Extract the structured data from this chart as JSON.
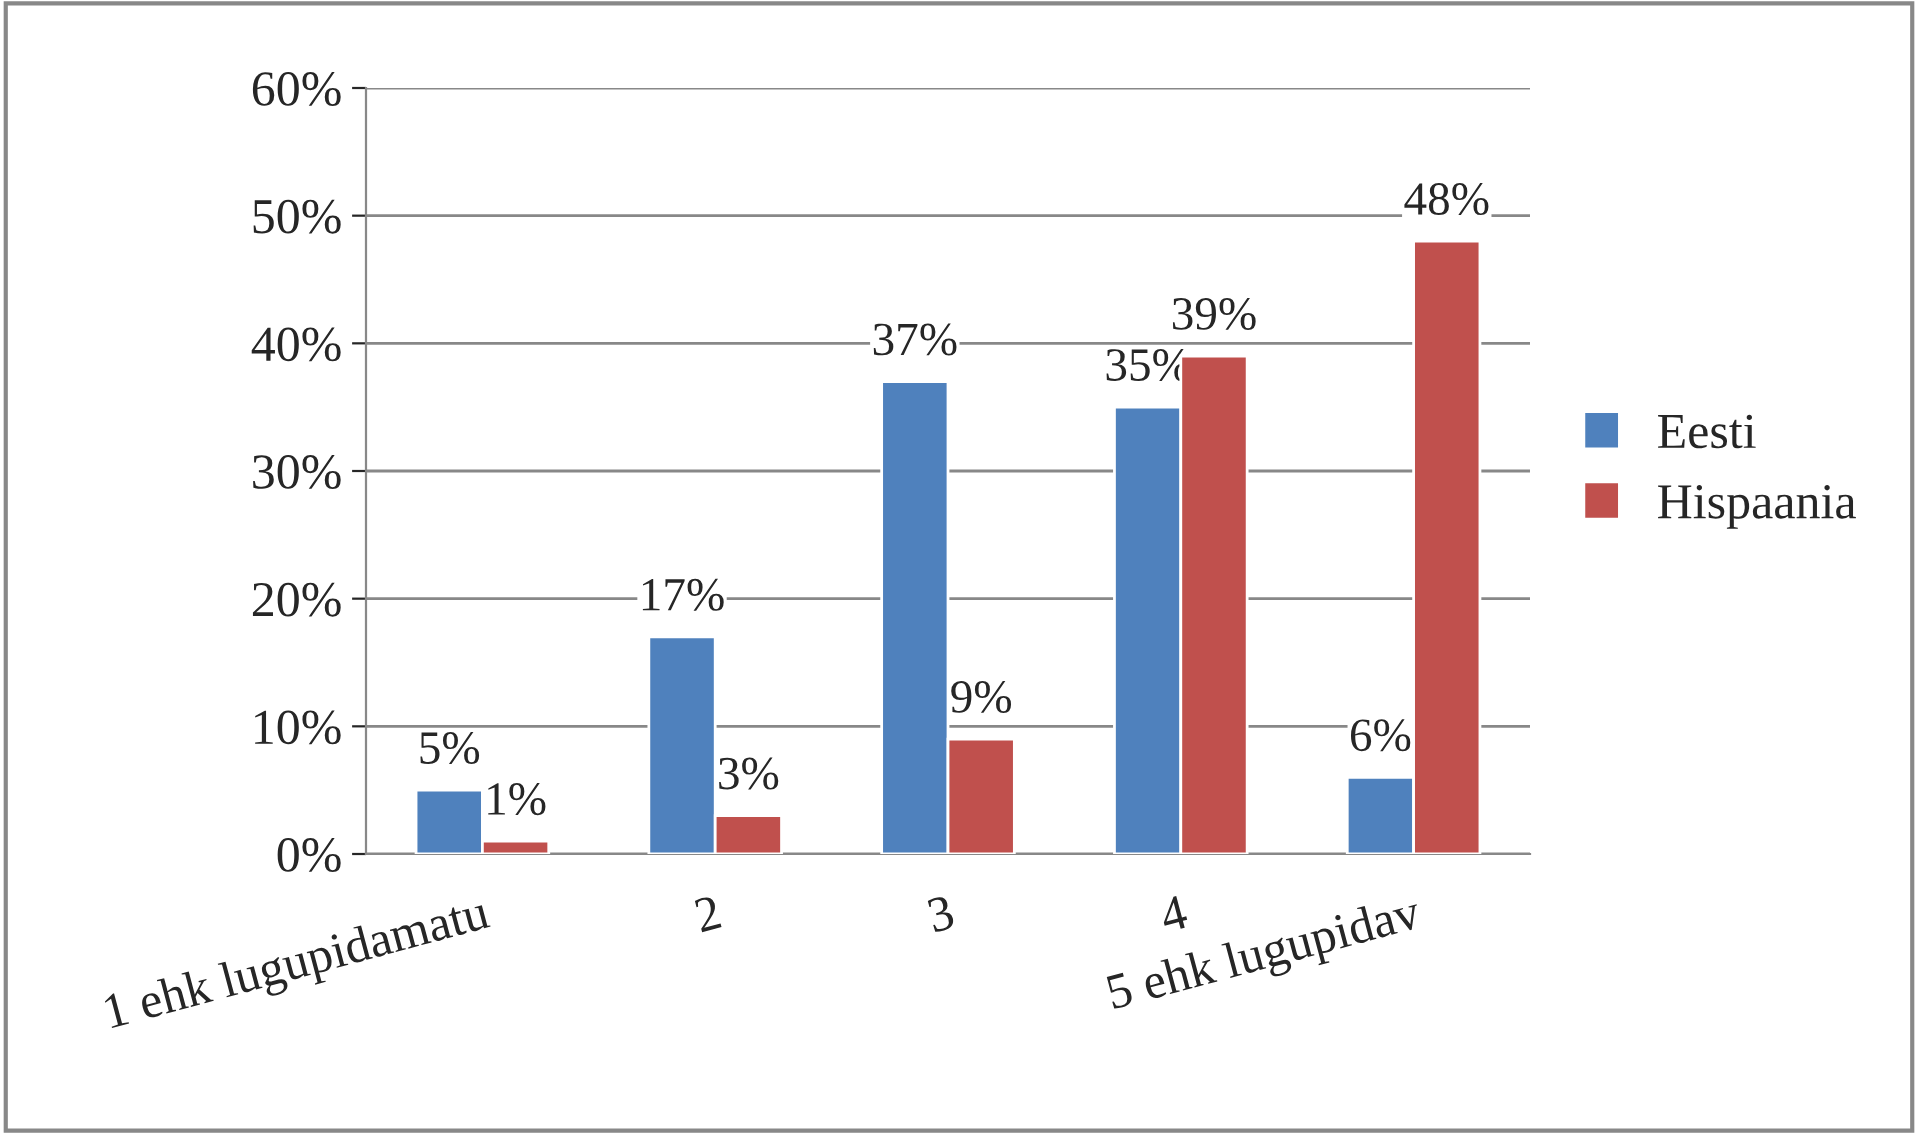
{
  "chart_data": {
    "type": "bar",
    "categories": [
      "1 ehk lugupidamatu",
      "2",
      "3",
      "4",
      "5 ehk lugupidav"
    ],
    "series": [
      {
        "name": "Eesti",
        "color": "#4f81bd",
        "values": [
          5,
          17,
          37,
          35,
          6
        ],
        "value_labels": [
          "5%",
          "17%",
          "37%",
          "35%",
          "6%"
        ]
      },
      {
        "name": "Hispaania",
        "color": "#c0504d",
        "values": [
          1,
          3,
          9,
          39,
          48
        ],
        "value_labels": [
          "1%",
          "3%",
          "9%",
          "39%",
          "48%"
        ]
      }
    ],
    "ylim": [
      0,
      60
    ],
    "yticks": [
      {
        "value": 0,
        "label": "0%"
      },
      {
        "value": 10,
        "label": "10%"
      },
      {
        "value": 20,
        "label": "20%"
      },
      {
        "value": 30,
        "label": "30%"
      },
      {
        "value": 40,
        "label": "40%"
      },
      {
        "value": 50,
        "label": "50%"
      },
      {
        "value": 60,
        "label": "60%"
      }
    ],
    "grid": "y",
    "legend": "right"
  }
}
